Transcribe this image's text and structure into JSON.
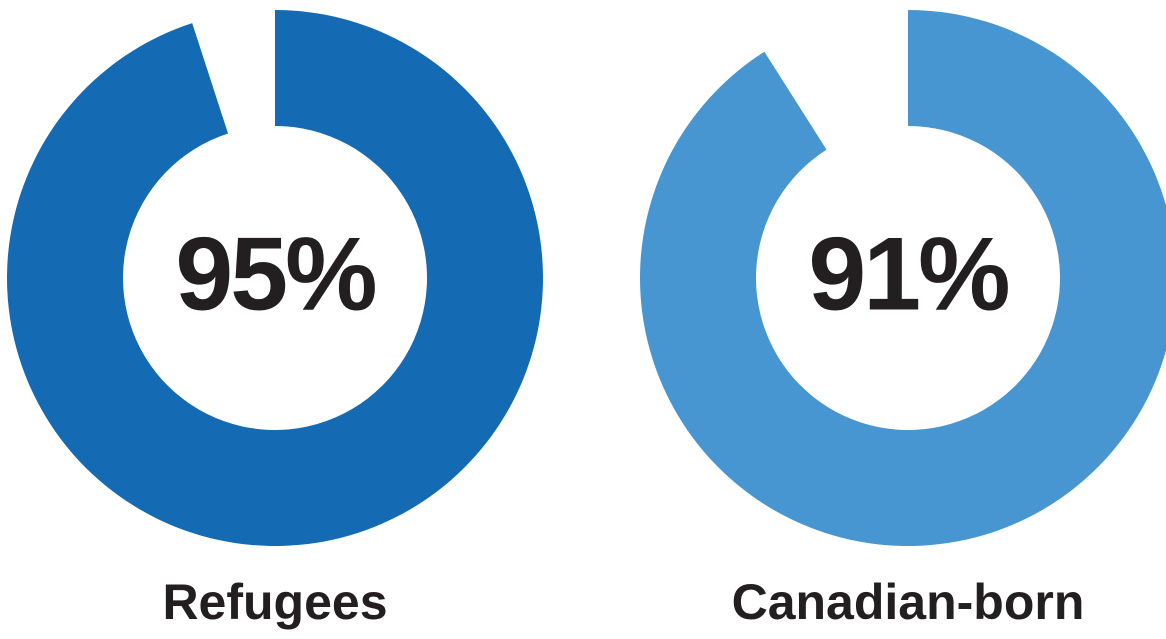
{
  "chart_data": [
    {
      "type": "donut",
      "categories": [
        "Refugees"
      ],
      "values": [
        95
      ],
      "value_labels": [
        "95%"
      ],
      "color": "#156bb3"
    },
    {
      "type": "donut",
      "categories": [
        "Canadian-born"
      ],
      "values": [
        91
      ],
      "value_labels": [
        "91%"
      ],
      "color": "#4896d1"
    }
  ]
}
